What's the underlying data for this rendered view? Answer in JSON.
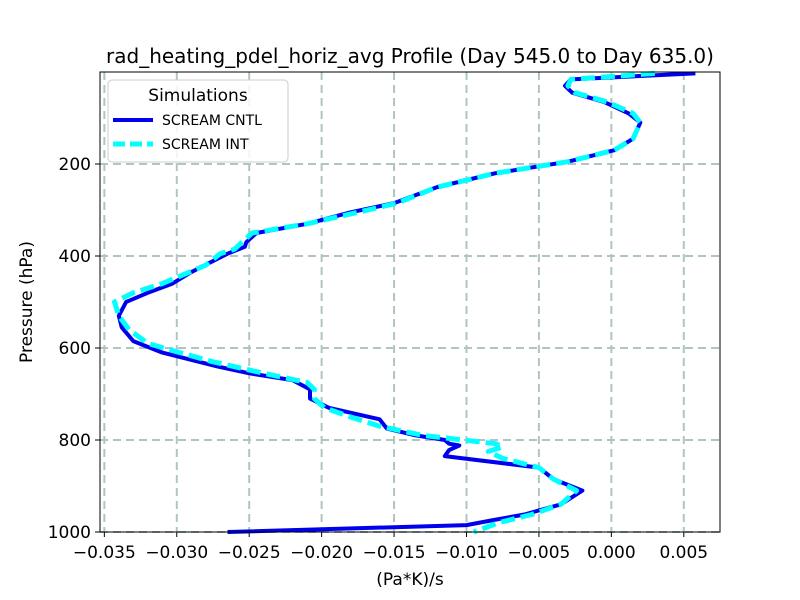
{
  "chart_data": {
    "type": "line",
    "title": "rad_heating_pdel_horiz_avg Profile (Day 545.0 to Day 635.0)",
    "xlabel": "(Pa*K)/s",
    "ylabel": "Pressure (hPa)",
    "xlim": [
      -0.0353,
      0.0075
    ],
    "ylim": [
      1000,
      0
    ],
    "y_inverted": true,
    "grid": true,
    "x_ticks": [
      -0.035,
      -0.03,
      -0.025,
      -0.02,
      -0.015,
      -0.01,
      -0.005,
      0.0,
      0.005
    ],
    "x_tick_labels": [
      "−0.035",
      "−0.030",
      "−0.025",
      "−0.020",
      "−0.015",
      "−0.010",
      "−0.005",
      "0.000",
      "0.005"
    ],
    "y_ticks": [
      200,
      400,
      600,
      800,
      1000
    ],
    "y_tick_labels": [
      "200",
      "400",
      "600",
      "800",
      "1000"
    ],
    "legend": {
      "title": "Simulations",
      "placement": "upper-left"
    },
    "series": [
      {
        "name": "SCREAM CNTL",
        "color": "#0000ee",
        "style": "solid",
        "x": [
          0.0058,
          -0.0028,
          -0.0032,
          -0.0027,
          -0.0005,
          0.0012,
          0.002,
          0.0015,
          0.0002,
          -0.003,
          -0.008,
          -0.012,
          -0.015,
          -0.018,
          -0.021,
          -0.0245,
          -0.0252,
          -0.0253,
          -0.0265,
          -0.029,
          -0.0303,
          -0.032,
          -0.0335,
          -0.034,
          -0.0338,
          -0.033,
          -0.031,
          -0.0272,
          -0.025,
          -0.022,
          -0.0208,
          -0.0208,
          -0.0195,
          -0.016,
          -0.0155,
          -0.0135,
          -0.0115,
          -0.0112,
          -0.0105,
          -0.0112,
          -0.0115,
          -0.005,
          -0.004,
          -0.002,
          -0.0035,
          -0.006,
          -0.0083,
          -0.01,
          -0.0265
        ],
        "y": [
          3,
          16,
          30,
          45,
          65,
          90,
          110,
          145,
          170,
          195,
          220,
          250,
          285,
          305,
          330,
          350,
          370,
          380,
          395,
          435,
          460,
          480,
          500,
          530,
          555,
          585,
          610,
          640,
          655,
          670,
          690,
          710,
          730,
          755,
          775,
          790,
          800,
          808,
          812,
          822,
          835,
          860,
          885,
          910,
          940,
          962,
          975,
          985,
          1000
        ]
      },
      {
        "name": "SCREAM INT",
        "color": "#00ffff",
        "style": "dashed",
        "x": [
          0.003,
          -0.0028,
          -0.003,
          -0.0025,
          -0.0003,
          0.0015,
          0.002,
          0.0015,
          0.0002,
          -0.003,
          -0.008,
          -0.012,
          -0.0148,
          -0.0175,
          -0.021,
          -0.0248,
          -0.0255,
          -0.026,
          -0.027,
          -0.028,
          -0.031,
          -0.033,
          -0.0343,
          -0.034,
          -0.0333,
          -0.032,
          -0.0298,
          -0.0275,
          -0.024,
          -0.021,
          -0.0205,
          -0.0205,
          -0.0198,
          -0.018,
          -0.016,
          -0.013,
          -0.008,
          -0.0075,
          -0.0085,
          -0.0075,
          -0.005,
          -0.004,
          -0.0024,
          -0.0035,
          -0.0055,
          -0.0078,
          -0.0095
        ],
        "y": [
          3,
          16,
          30,
          45,
          65,
          90,
          110,
          145,
          170,
          195,
          220,
          250,
          285,
          305,
          330,
          350,
          370,
          385,
          395,
          420,
          460,
          480,
          500,
          530,
          560,
          590,
          610,
          630,
          655,
          675,
          690,
          710,
          730,
          750,
          770,
          790,
          808,
          815,
          825,
          840,
          860,
          885,
          910,
          940,
          962,
          980,
          1000
        ]
      }
    ]
  }
}
